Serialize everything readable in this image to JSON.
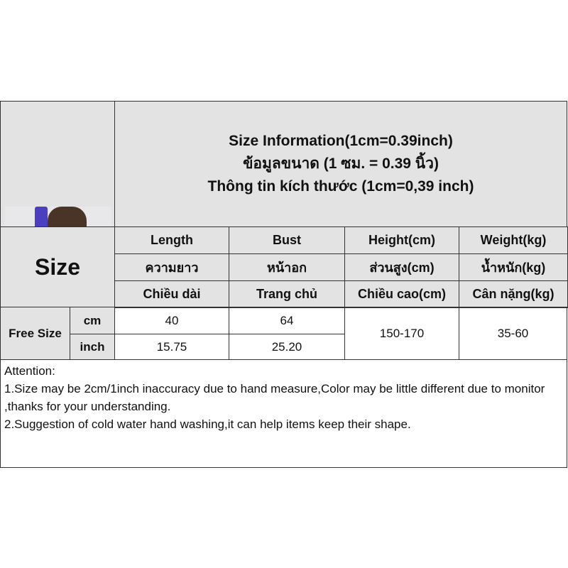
{
  "title": {
    "line1": "Size Information(1cm=0.39inch)",
    "line2": "ข้อมูลขนาด (1 ซม. = 0.39 นิ้ว)",
    "line3": "Thông tin kích thước (1cm=0,39 inch)"
  },
  "size_label": "Size",
  "columns": [
    {
      "en": "Length",
      "th": "ความยาว",
      "vi": "Chiều dài"
    },
    {
      "en": "Bust",
      "th": "หน้าอก",
      "vi": "Trang chủ"
    },
    {
      "en": "Height(cm)",
      "th": "ส่วนสูง(cm)",
      "vi": "Chiều cao(cm)"
    },
    {
      "en": "Weight(kg)",
      "th": "น้ำหนัก(kg)",
      "vi": "Cân nặng(kg)"
    }
  ],
  "row_label": "Free Size",
  "units": [
    "cm",
    "inch"
  ],
  "values": {
    "cm": [
      "40",
      "64"
    ],
    "inch": [
      "15.75",
      "25.20"
    ],
    "height": "150-170",
    "weight": "35-60"
  },
  "attention": {
    "heading": "Attention:",
    "line1": "1.Size may be 2cm/1inch inaccuracy due to hand measure,Color may be little different due to monitor ,thanks for your understanding.",
    "line2": "2.Suggestion of cold water hand washing,it can help items keep their shape."
  },
  "colors": {
    "header_bg": "#e3e3e3",
    "top_green": "#4caf50",
    "stripe_green": "#7cb342"
  }
}
